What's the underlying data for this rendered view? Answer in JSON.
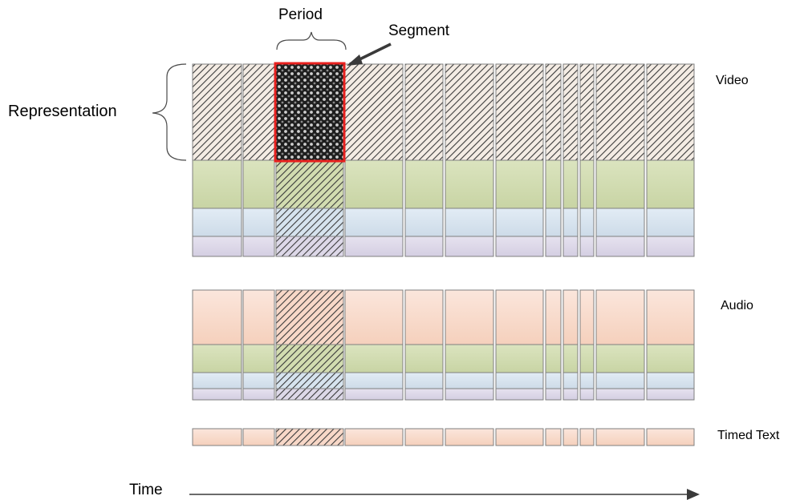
{
  "labels": {
    "period": "Period",
    "segment": "Segment",
    "representation": "Representation",
    "video": "Video",
    "audio": "Audio",
    "timed_text": "Timed Text",
    "time": "Time"
  },
  "colors": {
    "green": "#d2dcb0",
    "blue": "#d6e3ee",
    "lavender": "#ddd8e8",
    "peach": "#f8d8c8",
    "highlight_border": "#e8201e",
    "hatch": "#3a3a3a",
    "border": "#7f7f7f"
  },
  "diagram": {
    "segment_count": 12,
    "highlighted_period_index": 2,
    "highlighted_segment": {
      "track": "video",
      "row": 0,
      "index": 2
    },
    "tracks": [
      {
        "name": "video",
        "rows": [
          "hatch",
          "green",
          "blue",
          "lavender"
        ]
      },
      {
        "name": "audio",
        "rows": [
          "peach",
          "green",
          "blue",
          "lavender"
        ]
      },
      {
        "name": "timed_text",
        "rows": [
          "peach"
        ]
      }
    ]
  }
}
